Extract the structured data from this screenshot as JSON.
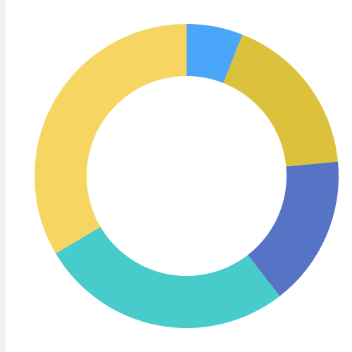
{
  "chart_data": {
    "type": "donut",
    "values": [
      6,
      17.5,
      16,
      27,
      33.5
    ],
    "colors": [
      "#4aa6f8",
      "#dcc23c",
      "#5673c5",
      "#47cbcb",
      "#f7d562"
    ]
  }
}
